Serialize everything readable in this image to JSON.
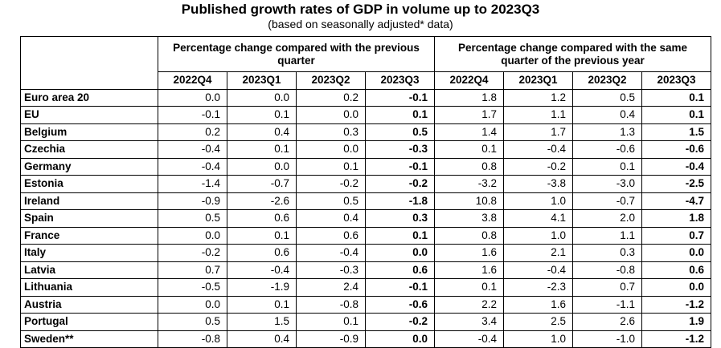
{
  "title": "Published growth rates of GDP in volume up to 2023Q3",
  "subtitle": "(based on seasonally adjusted* data)",
  "groups": [
    "Percentage change compared with the previous quarter",
    "Percentage change compared with the same quarter of the previous year"
  ],
  "quarters": [
    "2022Q4",
    "2023Q1",
    "2023Q2",
    "2023Q3",
    "2022Q4",
    "2023Q1",
    "2023Q2",
    "2023Q3"
  ],
  "rows": [
    {
      "country": "Euro area 20",
      "values": [
        "0.0",
        "0.0",
        "0.2",
        "-0.1",
        "1.8",
        "1.2",
        "0.5",
        "0.1"
      ]
    },
    {
      "country": "EU",
      "values": [
        "-0.1",
        "0.1",
        "0.0",
        "0.1",
        "1.7",
        "1.1",
        "0.4",
        "0.1"
      ]
    },
    {
      "country": "Belgium",
      "values": [
        "0.2",
        "0.4",
        "0.3",
        "0.5",
        "1.4",
        "1.7",
        "1.3",
        "1.5"
      ]
    },
    {
      "country": "Czechia",
      "values": [
        "-0.4",
        "0.1",
        "0.0",
        "-0.3",
        "0.1",
        "-0.4",
        "-0.6",
        "-0.6"
      ]
    },
    {
      "country": "Germany",
      "values": [
        "-0.4",
        "0.0",
        "0.1",
        "-0.1",
        "0.8",
        "-0.2",
        "0.1",
        "-0.4"
      ]
    },
    {
      "country": "Estonia",
      "values": [
        "-1.4",
        "-0.7",
        "-0.2",
        "-0.2",
        "-3.2",
        "-3.8",
        "-3.0",
        "-2.5"
      ]
    },
    {
      "country": "Ireland",
      "values": [
        "-0.9",
        "-2.6",
        "0.5",
        "-1.8",
        "10.8",
        "1.0",
        "-0.7",
        "-4.7"
      ]
    },
    {
      "country": "Spain",
      "values": [
        "0.5",
        "0.6",
        "0.4",
        "0.3",
        "3.8",
        "4.1",
        "2.0",
        "1.8"
      ]
    },
    {
      "country": "France",
      "values": [
        "0.0",
        "0.1",
        "0.6",
        "0.1",
        "0.8",
        "1.0",
        "1.1",
        "0.7"
      ]
    },
    {
      "country": "Italy",
      "values": [
        "-0.2",
        "0.6",
        "-0.4",
        "0.0",
        "1.6",
        "2.1",
        "0.3",
        "0.0"
      ]
    },
    {
      "country": "Latvia",
      "values": [
        "0.7",
        "-0.4",
        "-0.3",
        "0.6",
        "1.6",
        "-0.4",
        "-0.8",
        "0.6"
      ]
    },
    {
      "country": "Lithuania",
      "values": [
        "-0.5",
        "-1.9",
        "2.4",
        "-0.1",
        "0.1",
        "-2.3",
        "0.7",
        "0.0"
      ]
    },
    {
      "country": "Austria",
      "values": [
        "0.0",
        "0.1",
        "-0.8",
        "-0.6",
        "2.2",
        "1.6",
        "-1.1",
        "-1.2"
      ]
    },
    {
      "country": "Portugal",
      "values": [
        "0.5",
        "1.5",
        "0.1",
        "-0.2",
        "3.4",
        "2.5",
        "2.6",
        "1.9"
      ]
    },
    {
      "country": "Sweden**",
      "values": [
        "-0.8",
        "0.4",
        "-0.9",
        "0.0",
        "-0.4",
        "1.0",
        "-1.0",
        "-1.2"
      ]
    }
  ]
}
